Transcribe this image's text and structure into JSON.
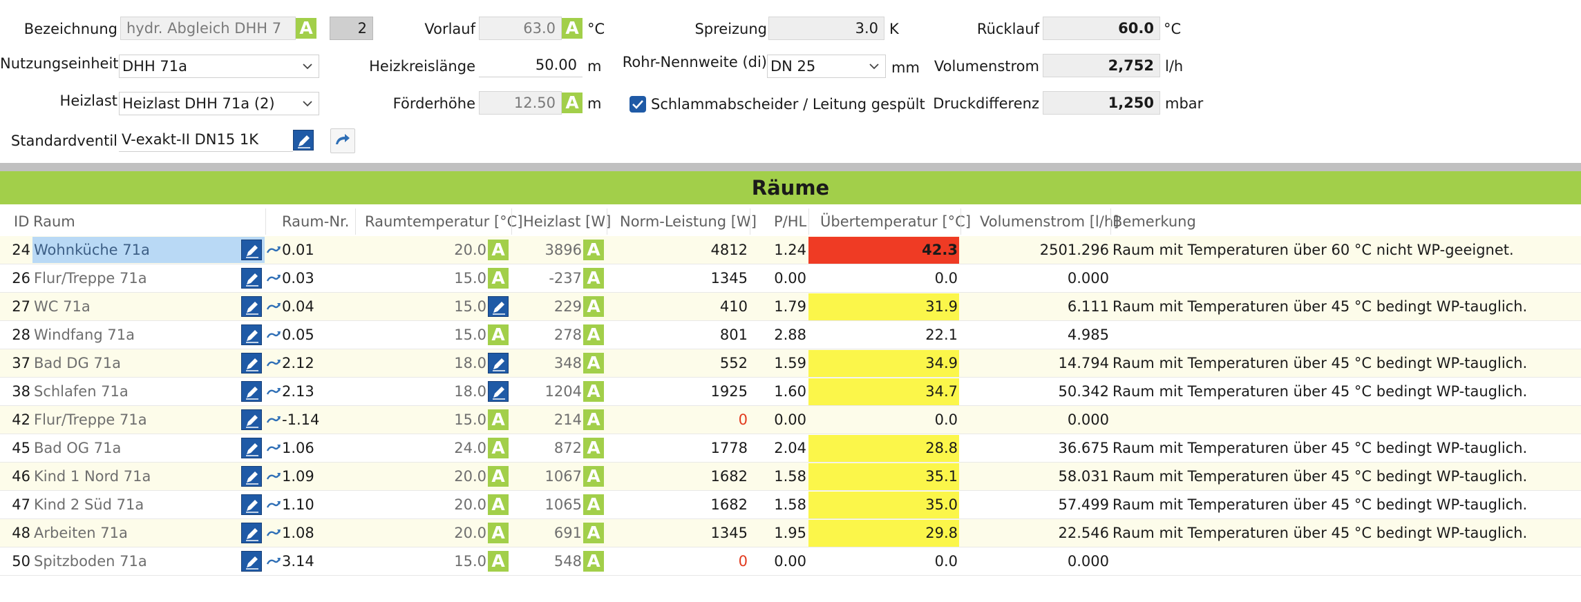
{
  "header": {
    "bezeichnung": {
      "label": "Bezeichnung",
      "value": "hydr. Abgleich DHH 7",
      "count": "2"
    },
    "nutzungseinheit": {
      "label": "Nutzungseinheit",
      "value": "DHH 71a"
    },
    "heizlast": {
      "label": "Heizlast",
      "value": "Heizlast DHH 71a (2)"
    },
    "standardventil": {
      "label": "Standardventil",
      "value": "V-exakt-II DN15 1K"
    },
    "vorlauf": {
      "label": "Vorlauf",
      "value": "63.0",
      "unit": "°C"
    },
    "heizkreislaenge": {
      "label": "Heizkreislänge",
      "value": "50.00",
      "unit": "m"
    },
    "foerderhoehe": {
      "label": "Förderhöhe",
      "value": "12.50",
      "unit": "m"
    },
    "spreizung": {
      "label": "Spreizung",
      "value": "3.0",
      "unit": "K"
    },
    "rohr": {
      "label": "Rohr-Nennweite (di)",
      "value": "DN 25",
      "unit": "mm"
    },
    "schlamm": {
      "label": "Schlammabscheider / Leitung gespült",
      "checked": true
    },
    "ruecklauf": {
      "label": "Rücklauf",
      "value": "60.0",
      "unit": "°C"
    },
    "volumenstrom": {
      "label": "Volumenstrom",
      "value": "2,752",
      "unit": "l/h"
    },
    "druckdifferenz": {
      "label": "Druckdifferenz",
      "value": "1,250",
      "unit": "mbar"
    },
    "auto_glyph": "A"
  },
  "section_title": "Räume",
  "columns": {
    "id": "ID",
    "raum": "Raum",
    "raumnr": "Raum-Nr.",
    "temp": "Raumtemperatur [°C]",
    "heizlast": "Heizlast [W]",
    "norm": "Norm-Leistung [W]",
    "phl": "P/HL",
    "ueber": "Übertemperatur [°C]",
    "vol": "Volumenstrom [l/h]",
    "bem": "Bemerkung"
  },
  "rows": [
    {
      "id": "24",
      "raum": "Wohnküche 71a",
      "nr": "0.01",
      "temp": "20.0",
      "temp_mode": "A",
      "heizlast": "3896",
      "norm": "4812",
      "norm_red": false,
      "phl": "1.24",
      "ueber": "42.3",
      "level": "hot",
      "vol": "2501.296",
      "bem": "Raum mit Temperaturen über 60 °C nicht WP-geeignet.",
      "selected": true
    },
    {
      "id": "26",
      "raum": "Flur/Treppe 71a",
      "nr": "0.03",
      "temp": "15.0",
      "temp_mode": "A",
      "heizlast": "-237",
      "norm": "1345",
      "norm_red": false,
      "phl": "0.00",
      "ueber": "0.0",
      "level": "none",
      "vol": "0.000",
      "bem": ""
    },
    {
      "id": "27",
      "raum": "WC 71a",
      "nr": "0.04",
      "temp": "15.0",
      "temp_mode": "edit",
      "heizlast": "229",
      "norm": "410",
      "norm_red": false,
      "phl": "1.79",
      "ueber": "31.9",
      "level": "warm",
      "vol": "6.111",
      "bem": "Raum mit Temperaturen über 45 °C bedingt WP-tauglich."
    },
    {
      "id": "28",
      "raum": "Windfang 71a",
      "nr": "0.05",
      "temp": "15.0",
      "temp_mode": "A",
      "heizlast": "278",
      "norm": "801",
      "norm_red": false,
      "phl": "2.88",
      "ueber": "22.1",
      "level": "none",
      "vol": "4.985",
      "bem": ""
    },
    {
      "id": "37",
      "raum": "Bad DG 71a",
      "nr": "2.12",
      "temp": "18.0",
      "temp_mode": "edit",
      "heizlast": "348",
      "norm": "552",
      "norm_red": false,
      "phl": "1.59",
      "ueber": "34.9",
      "level": "warm",
      "vol": "14.794",
      "bem": "Raum mit Temperaturen über 45 °C bedingt WP-tauglich."
    },
    {
      "id": "38",
      "raum": "Schlafen 71a",
      "nr": "2.13",
      "temp": "18.0",
      "temp_mode": "edit",
      "heizlast": "1204",
      "norm": "1925",
      "norm_red": false,
      "phl": "1.60",
      "ueber": "34.7",
      "level": "warm",
      "vol": "50.342",
      "bem": "Raum mit Temperaturen über 45 °C bedingt WP-tauglich."
    },
    {
      "id": "42",
      "raum": "Flur/Treppe 71a",
      "nr": "-1.14",
      "temp": "15.0",
      "temp_mode": "A",
      "heizlast": "214",
      "norm": "0",
      "norm_red": true,
      "phl": "0.00",
      "ueber": "0.0",
      "level": "none",
      "vol": "0.000",
      "bem": ""
    },
    {
      "id": "45",
      "raum": "Bad OG 71a",
      "nr": "1.06",
      "temp": "24.0",
      "temp_mode": "A",
      "heizlast": "872",
      "norm": "1778",
      "norm_red": false,
      "phl": "2.04",
      "ueber": "28.8",
      "level": "warm",
      "vol": "36.675",
      "bem": "Raum mit Temperaturen über 45 °C bedingt WP-tauglich."
    },
    {
      "id": "46",
      "raum": "Kind 1 Nord 71a",
      "nr": "1.09",
      "temp": "20.0",
      "temp_mode": "A",
      "heizlast": "1067",
      "norm": "1682",
      "norm_red": false,
      "phl": "1.58",
      "ueber": "35.1",
      "level": "warm",
      "vol": "58.031",
      "bem": "Raum mit Temperaturen über 45 °C bedingt WP-tauglich."
    },
    {
      "id": "47",
      "raum": "Kind 2 Süd 71a",
      "nr": "1.10",
      "temp": "20.0",
      "temp_mode": "A",
      "heizlast": "1065",
      "norm": "1682",
      "norm_red": false,
      "phl": "1.58",
      "ueber": "35.0",
      "level": "warm",
      "vol": "57.499",
      "bem": "Raum mit Temperaturen über 45 °C bedingt WP-tauglich."
    },
    {
      "id": "48",
      "raum": "Arbeiten 71a",
      "nr": "1.08",
      "temp": "20.0",
      "temp_mode": "A",
      "heizlast": "691",
      "norm": "1345",
      "norm_red": false,
      "phl": "1.95",
      "ueber": "29.8",
      "level": "warm",
      "vol": "22.546",
      "bem": "Raum mit Temperaturen über 45 °C bedingt WP-tauglich."
    },
    {
      "id": "50",
      "raum": "Spitzboden 71a",
      "nr": "3.14",
      "temp": "15.0",
      "temp_mode": "A",
      "heizlast": "548",
      "norm": "0",
      "norm_red": true,
      "phl": "0.00",
      "ueber": "0.0",
      "level": "none",
      "vol": "0.000",
      "bem": ""
    }
  ]
}
